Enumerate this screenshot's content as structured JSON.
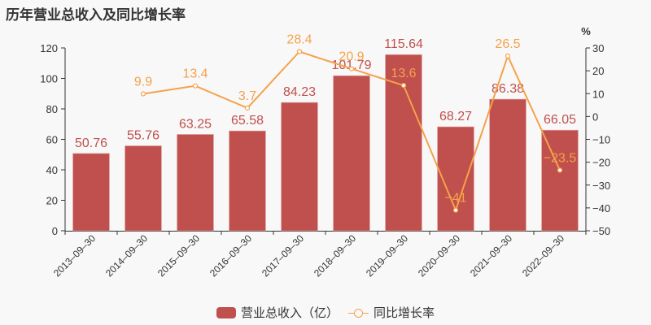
{
  "title": "历年营业总收入及同比增长率",
  "colors": {
    "bar": "#c0504d",
    "line": "#f4a24b",
    "axis": "#333333",
    "background": "#f8f8f8"
  },
  "legend": {
    "bar_label": "营业总收入（亿）",
    "line_label": "同比增长率"
  },
  "right_axis_unit": "%",
  "chart_data": {
    "type": "bar",
    "title": "历年营业总收入及同比增长率",
    "categories": [
      "2013-09-30",
      "2014-09-30",
      "2015-09-30",
      "2016-09-30",
      "2017-09-30",
      "2018-09-30",
      "2019-09-30",
      "2020-09-30",
      "2021-09-30",
      "2022-09-30"
    ],
    "series": [
      {
        "name": "营业总收入（亿）",
        "type": "bar",
        "axis": "left",
        "values": [
          50.76,
          55.76,
          63.25,
          65.58,
          84.23,
          101.79,
          115.64,
          68.27,
          86.38,
          66.05
        ]
      },
      {
        "name": "同比增长率",
        "type": "line",
        "axis": "right",
        "values": [
          null,
          9.9,
          13.4,
          3.7,
          28.4,
          20.9,
          13.6,
          -41,
          26.5,
          -23.5
        ]
      }
    ],
    "xlabel": "",
    "ylabel": "",
    "ylabel_right": "%",
    "ylim": [
      0,
      120
    ],
    "ylim_right": [
      -50,
      30
    ],
    "yticks": [
      0,
      20,
      40,
      60,
      80,
      100,
      120
    ],
    "yticks_right": [
      -50,
      -40,
      -30,
      -20,
      -10,
      0,
      10,
      20,
      30
    ],
    "grid": false,
    "legend_position": "bottom"
  }
}
